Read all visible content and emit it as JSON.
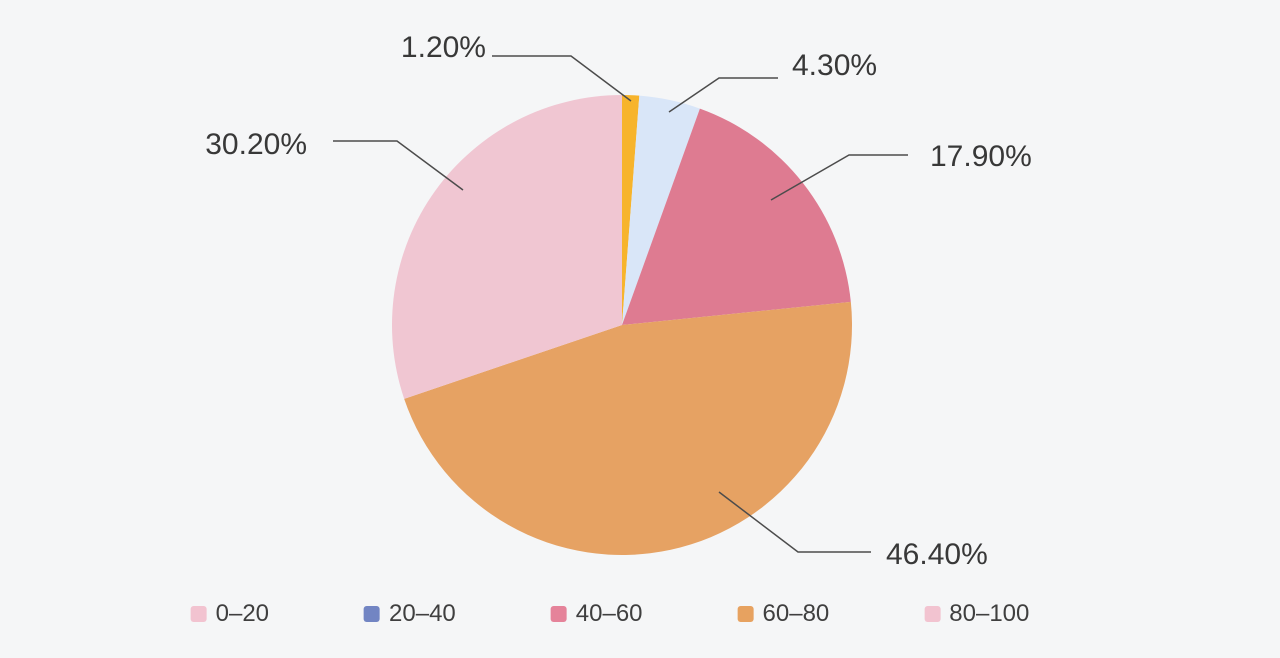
{
  "background_color": "#f5f6f7",
  "chart_data": {
    "type": "pie",
    "categories": [
      "0–20",
      "20–40",
      "40–60",
      "60–80",
      "80–100"
    ],
    "values": [
      1.2,
      4.3,
      17.9,
      46.4,
      30.2
    ],
    "slice_labels": [
      "1.20%",
      "4.30%",
      "17.90%",
      "46.40%",
      "30.20%"
    ],
    "slice_colors": [
      "#f7b42c",
      "#d9e6f8",
      "#de7b91",
      "#e6a263",
      "#f0c6d2"
    ],
    "legend": [
      {
        "label": "0–20",
        "color": "#f2c3d0"
      },
      {
        "label": "20–40",
        "color": "#7285c3"
      },
      {
        "label": "40–60",
        "color": "#e5839a"
      },
      {
        "label": "60–80",
        "color": "#e7a260"
      },
      {
        "label": "80–100",
        "color": "#f2c3d0"
      }
    ],
    "title": "",
    "start_angle_deg": 90,
    "clockwise": true,
    "legend_position": "bottom",
    "label_color": "#383838",
    "leader_line_color": "#4c4c4c"
  }
}
